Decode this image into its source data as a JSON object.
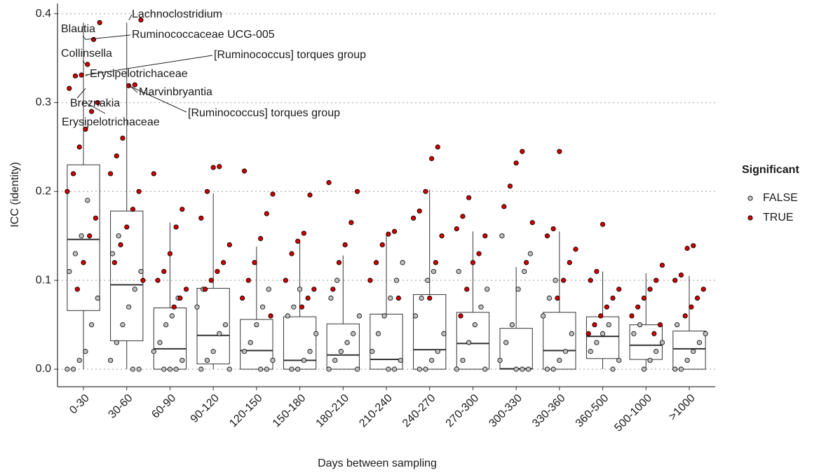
{
  "chart_data": {
    "type": "box_jitter",
    "x_label": "Days between sampling",
    "y_label": "ICC (identity)",
    "categories": [
      "0-30",
      "30-60",
      "60-90",
      "90-120",
      "120-150",
      "150-180",
      "180-210",
      "210-240",
      "240-270",
      "270-300",
      "300-330",
      "330-360",
      "360-500",
      "500-1000",
      ">1000"
    ],
    "ylim": [
      -0.0197,
      0.4115
    ],
    "yticks": [
      {
        "value": 0,
        "label": "0.0"
      },
      0.1,
      0.2,
      0.3,
      0.4
    ],
    "grid": true,
    "legend": {
      "title": "Significant",
      "position": "right"
    },
    "boxes": [
      {
        "low": 0,
        "q1": 0.066,
        "median": 0.146,
        "q3": 0.23,
        "high": 0.39
      },
      {
        "low": 0,
        "q1": 0.032,
        "median": 0.095,
        "q3": 0.178,
        "high": 0.39
      },
      {
        "low": 0,
        "q1": 0,
        "median": 0.023,
        "q3": 0.069,
        "high": 0.165
      },
      {
        "low": 0,
        "q1": 0.006,
        "median": 0.038,
        "q3": 0.091,
        "high": 0.198
      },
      {
        "low": 0,
        "q1": 0,
        "median": 0.021,
        "q3": 0.056,
        "high": 0.138
      },
      {
        "low": 0,
        "q1": 0,
        "median": 0.01,
        "q3": 0.059,
        "high": 0.143
      },
      {
        "low": 0,
        "q1": 0,
        "median": 0.016,
        "q3": 0.051,
        "high": 0.128
      },
      {
        "low": 0,
        "q1": 0,
        "median": 0.011,
        "q3": 0.062,
        "high": 0.152
      },
      {
        "low": 0,
        "q1": 0,
        "median": 0.022,
        "q3": 0.084,
        "high": 0.202
      },
      {
        "low": 0,
        "q1": 0,
        "median": 0.029,
        "q3": 0.064,
        "high": 0.155
      },
      {
        "low": 0,
        "q1": 0,
        "median": 0.0005,
        "q3": 0.046,
        "high": 0.115
      },
      {
        "low": 0,
        "q1": 0,
        "median": 0.021,
        "q3": 0.064,
        "high": 0.155
      },
      {
        "low": 0,
        "q1": 0.012,
        "median": 0.037,
        "q3": 0.059,
        "high": 0.11
      },
      {
        "low": 0,
        "q1": 0.011,
        "median": 0.027,
        "q3": 0.05,
        "high": 0.108
      },
      {
        "low": 0,
        "q1": 0,
        "median": 0.023,
        "q3": 0.043,
        "high": 0.105
      }
    ],
    "series": [
      {
        "name": "FALSE",
        "color": "#c0c0c0",
        "values": [
          [
            0,
            0,
            0.01,
            0.02,
            0.05,
            0.08,
            0.11,
            0.13,
            0.15,
            0.19
          ],
          [
            0,
            0,
            0.01,
            0.03,
            0.05,
            0.07,
            0.09,
            0.11,
            0.13,
            0.15
          ],
          [
            0,
            0,
            0,
            0.01,
            0.02,
            0.03,
            0.05,
            0.06,
            0.08
          ],
          [
            0,
            0,
            0.01,
            0.02,
            0.04,
            0.05,
            0.07,
            0.09
          ],
          [
            0,
            0,
            0.01,
            0.02,
            0.03,
            0.05,
            0.07,
            0.09
          ],
          [
            0,
            0,
            0.01,
            0.02,
            0.04,
            0.06,
            0.07,
            0.09
          ],
          [
            0,
            0,
            0.01,
            0.02,
            0.03,
            0.04,
            0.06,
            0.08,
            0.1
          ],
          [
            0,
            0,
            0.01,
            0.02,
            0.04,
            0.06,
            0.08,
            0.1,
            0.12
          ],
          [
            0,
            0,
            0.01,
            0.02,
            0.04,
            0.06,
            0.08,
            0.1,
            0.11
          ],
          [
            0,
            0,
            0.01,
            0.03,
            0.05,
            0.07,
            0.09,
            0.11
          ],
          [
            0,
            0,
            0,
            0.01,
            0.03,
            0.05,
            0.09,
            0.11,
            0.13,
            0.15
          ],
          [
            0,
            0,
            0.01,
            0.02,
            0.04,
            0.06,
            0.08,
            0.1
          ],
          [
            0,
            0.01,
            0.02,
            0.03,
            0.04,
            0.05
          ],
          [
            0,
            0.01,
            0.02,
            0.03,
            0.04,
            0.05
          ],
          [
            0,
            0,
            0.01,
            0.02,
            0.03,
            0.04,
            0.05
          ]
        ]
      },
      {
        "name": "TRUE",
        "color": "#cc0000",
        "values": [
          [
            0.09,
            0.12,
            0.15,
            0.17,
            0.2,
            0.22,
            0.25,
            0.27,
            0.29,
            0.3,
            0.316,
            0.33,
            0.331,
            0.343,
            0.371,
            0.39
          ],
          [
            0.1,
            0.12,
            0.14,
            0.16,
            0.18,
            0.2,
            0.22,
            0.24,
            0.26,
            0.319,
            0.32,
            0.393
          ],
          [
            0.07,
            0.08,
            0.09,
            0.1,
            0.11,
            0.13,
            0.16,
            0.18,
            0.22
          ],
          [
            0.09,
            0.1,
            0.11,
            0.12,
            0.14,
            0.17,
            0.2,
            0.227,
            0.228
          ],
          [
            0.06,
            0.08,
            0.1,
            0.12,
            0.147,
            0.175,
            0.197,
            0.223
          ],
          [
            0.07,
            0.08,
            0.09,
            0.1,
            0.13,
            0.144,
            0.153,
            0.196
          ],
          [
            0.09,
            0.12,
            0.14,
            0.165,
            0.2,
            0.21
          ],
          [
            0.08,
            0.1,
            0.12,
            0.14,
            0.152,
            0.155
          ],
          [
            0.08,
            0.12,
            0.15,
            0.17,
            0.178,
            0.2,
            0.237,
            0.25
          ],
          [
            0.06,
            0.09,
            0.12,
            0.13,
            0.15,
            0.158,
            0.172,
            0.193
          ],
          [
            0.12,
            0.165,
            0.183,
            0.206,
            0.232,
            0.245
          ],
          [
            0.08,
            0.1,
            0.12,
            0.135,
            0.15,
            0.158,
            0.245
          ],
          [
            0.04,
            0.05,
            0.06,
            0.07,
            0.08,
            0.09,
            0.1,
            0.11,
            0.163
          ],
          [
            0.04,
            0.05,
            0.06,
            0.07,
            0.08,
            0.09,
            0.1,
            0.117
          ],
          [
            0.06,
            0.07,
            0.08,
            0.09,
            0.1,
            0.106,
            0.136,
            0.139
          ]
        ]
      }
    ],
    "annotations": [
      {
        "text": "Lachnoclostridium",
        "x": "30-60",
        "y": 0.393
      },
      {
        "text": "Blautia",
        "x": "0-30",
        "y": 0.371
      },
      {
        "text": "Ruminococcaceae UCG-005",
        "x": "0-30",
        "y": 0.371
      },
      {
        "text": "Collinsella",
        "x": "0-30",
        "y": 0.343
      },
      {
        "text": "[Ruminococcus] torques group",
        "x": "0-30",
        "y": 0.331
      },
      {
        "text": "Erysipelotrichaceae",
        "x": "0-30",
        "y": 0.33
      },
      {
        "text": "Marvinbryantia",
        "x": "30-60",
        "y": 0.32
      },
      {
        "text": "[Ruminococcus] torques group",
        "x": "30-60",
        "y": 0.319
      },
      {
        "text": "Breznakia",
        "x": "0-30",
        "y": 0.316
      },
      {
        "text": "Erysipelotrichaceae",
        "x": "0-30",
        "y": 0.3
      }
    ]
  }
}
